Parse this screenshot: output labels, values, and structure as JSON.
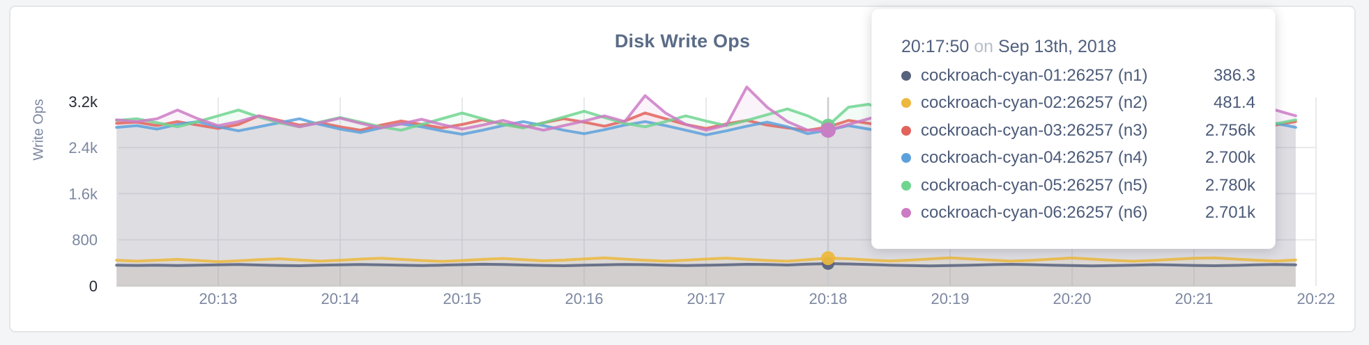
{
  "card": {
    "background": "#ffffff",
    "border_color": "#e3e6e9",
    "page_background": "#f4f5f6"
  },
  "chart_data": {
    "type": "line",
    "title": "Disk Write Ops",
    "ylabel": "Write Ops",
    "x_axis": {
      "ticks": [
        "20:13",
        "20:14",
        "20:15",
        "20:16",
        "20:17",
        "20:18",
        "20:19",
        "20:20",
        "20:21",
        "20:22"
      ]
    },
    "y_axis": {
      "ticks": [
        {
          "text": "3.2k",
          "value": 3200,
          "dark": true
        },
        {
          "text": "2.4k",
          "value": 2400,
          "dark": false
        },
        {
          "text": "1.6k",
          "value": 1600,
          "dark": false
        },
        {
          "text": "800",
          "value": 800,
          "dark": false
        },
        {
          "text": "0",
          "value": 0,
          "dark": true
        }
      ]
    },
    "ylim": [
      0,
      3475
    ],
    "sample_start": "20:12:10",
    "sample_step_sec": 10,
    "hover_index": 35,
    "grid": true,
    "legend_position": "tooltip",
    "series": [
      {
        "name": "cockroach-cyan-01:26257 (n1)",
        "color": "#57627c",
        "values": [
          358,
          355,
          360,
          352,
          358,
          365,
          370,
          362,
          355,
          350,
          358,
          366,
          372,
          365,
          358,
          352,
          360,
          368,
          375,
          370,
          362,
          355,
          350,
          358,
          365,
          372,
          368,
          360,
          352,
          358,
          366,
          374,
          370,
          362,
          378,
          386.3,
          380,
          370,
          360,
          352,
          346,
          352,
          360,
          368,
          374,
          368,
          360,
          352,
          346,
          352,
          360,
          368,
          362,
          355,
          350,
          356,
          364,
          370,
          365
        ]
      },
      {
        "name": "cockroach-cyan-02:26257 (n2)",
        "color": "#ecb83d",
        "values": [
          445,
          430,
          445,
          460,
          440,
          420,
          435,
          455,
          470,
          450,
          430,
          445,
          465,
          480,
          460,
          440,
          425,
          440,
          460,
          475,
          455,
          435,
          448,
          468,
          485,
          465,
          445,
          430,
          446,
          466,
          482,
          462,
          442,
          428,
          455,
          481.4,
          470,
          450,
          432,
          446,
          468,
          488,
          468,
          448,
          430,
          444,
          464,
          484,
          464,
          444,
          428,
          442,
          462,
          480,
          486,
          466,
          446,
          432,
          450
        ]
      },
      {
        "name": "cockroach-cyan-03:26257 (n3)",
        "color": "#e2635c",
        "values": [
          2820,
          2840,
          2780,
          2850,
          2790,
          2730,
          2800,
          2950,
          2870,
          2790,
          2830,
          2760,
          2700,
          2790,
          2860,
          2800,
          2740,
          2800,
          2880,
          2810,
          2750,
          2830,
          2900,
          2840,
          2770,
          2860,
          3000,
          2900,
          2800,
          2730,
          2810,
          2870,
          2790,
          2740,
          2700,
          2756,
          2870,
          2820,
          2760,
          2700,
          2780,
          2850,
          2910,
          2840,
          2770,
          2810,
          2750,
          2700,
          2770,
          2830,
          2890,
          3050,
          2900,
          2800,
          2840,
          2780,
          2720,
          2790,
          2850
        ]
      },
      {
        "name": "cockroach-cyan-04:26257 (n4)",
        "color": "#5ca1dc",
        "values": [
          2750,
          2780,
          2720,
          2800,
          2850,
          2760,
          2690,
          2760,
          2830,
          2900,
          2800,
          2720,
          2660,
          2740,
          2810,
          2760,
          2690,
          2630,
          2700,
          2780,
          2850,
          2780,
          2700,
          2640,
          2710,
          2790,
          2850,
          2780,
          2700,
          2620,
          2690,
          2770,
          2840,
          2760,
          2640,
          2700,
          2780,
          2720,
          2650,
          2600,
          2680,
          2760,
          2830,
          2760,
          2690,
          2730,
          2790,
          2720,
          2650,
          2700,
          2770,
          2840,
          2770,
          2700,
          2630,
          2690,
          2760,
          2820,
          2750
        ]
      },
      {
        "name": "cockroach-cyan-05:26257 (n5)",
        "color": "#70d590",
        "values": [
          2870,
          2900,
          2830,
          2760,
          2850,
          2950,
          3050,
          2930,
          2830,
          2760,
          2840,
          2920,
          2840,
          2760,
          2700,
          2800,
          2900,
          3000,
          2900,
          2800,
          2740,
          2830,
          2930,
          3030,
          2920,
          2820,
          2760,
          2850,
          2950,
          2860,
          2780,
          2870,
          2970,
          3070,
          2950,
          2780,
          3100,
          3150,
          3000,
          2880,
          2800,
          2880,
          2960,
          2870,
          2790,
          2860,
          2940,
          2850,
          2770,
          2850,
          2930,
          3010,
          2920,
          2830,
          2900,
          2980,
          2890,
          2810,
          2880
        ]
      },
      {
        "name": "cockroach-cyan-06:26257 (n6)",
        "color": "#cc7bc5",
        "values": [
          2880,
          2850,
          2900,
          3050,
          2900,
          2780,
          2850,
          2950,
          2850,
          2760,
          2830,
          2910,
          2820,
          2740,
          2810,
          2890,
          2800,
          2720,
          2790,
          2870,
          2780,
          2700,
          2780,
          2860,
          2950,
          2850,
          3300,
          3000,
          2800,
          2700,
          2790,
          3450,
          3100,
          2850,
          2700,
          2701,
          2800,
          2900,
          2990,
          2890,
          2790,
          2870,
          2950,
          2860,
          2780,
          2850,
          2930,
          2840,
          2760,
          2830,
          2910,
          2820,
          2740,
          2810,
          2890,
          2970,
          2880,
          3050,
          2950
        ]
      }
    ]
  },
  "tooltip": {
    "time": "20:17:50",
    "conj": "on",
    "date": "Sep 13th, 2018",
    "rows": [
      {
        "label": "cockroach-cyan-01:26257 (n1)",
        "value": "386.3",
        "color": "#57627c"
      },
      {
        "label": "cockroach-cyan-02:26257 (n2)",
        "value": "481.4",
        "color": "#ecb83d"
      },
      {
        "label": "cockroach-cyan-03:26257 (n3)",
        "value": "2.756k",
        "color": "#e2635c"
      },
      {
        "label": "cockroach-cyan-04:26257 (n4)",
        "value": "2.700k",
        "color": "#5ca1dc"
      },
      {
        "label": "cockroach-cyan-05:26257 (n5)",
        "value": "2.780k",
        "color": "#70d590"
      },
      {
        "label": "cockroach-cyan-06:26257 (n6)",
        "value": "2.701k",
        "color": "#cc7bc5"
      }
    ]
  },
  "colors": {
    "grid": "#e7e9ec",
    "hover_line": "#c9cbce",
    "axis_text": "#7c87a0",
    "axis_text_dark": "#262a33",
    "title_text": "#5b6c88",
    "tooltip_text": "#4c5b79",
    "tooltip_muted": "#b8bdc7"
  }
}
